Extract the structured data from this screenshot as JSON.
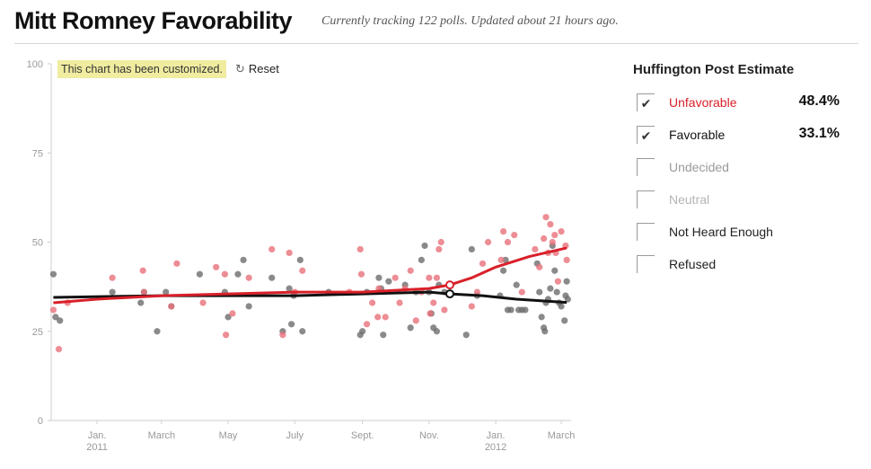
{
  "header": {
    "title": "Mitt Romney Favorability",
    "subtitle": "Currently tracking 122 polls. Updated about 21 hours ago."
  },
  "controls": {
    "customized_badge": "This chart has been customized.",
    "reset_label": "Reset",
    "reset_icon": "reset-icon"
  },
  "legend": {
    "title": "Huffington Post Estimate",
    "items": [
      {
        "label": "Unfavorable",
        "value": "48.4%",
        "checked": true,
        "color": "#d9202a"
      },
      {
        "label": "Favorable",
        "value": "33.1%",
        "checked": true,
        "color": "#111111"
      },
      {
        "label": "Undecided",
        "value": "",
        "checked": false,
        "color": "#9a9a9a"
      },
      {
        "label": "Neutral",
        "value": "",
        "checked": false,
        "color": "#b5b5b5"
      },
      {
        "label": "Not Heard Enough",
        "value": "",
        "checked": false,
        "color": "#222222"
      },
      {
        "label": "Refused",
        "value": "",
        "checked": false,
        "color": "#222222"
      }
    ]
  },
  "chart_data": {
    "type": "scatter",
    "title": "",
    "xlabel": "",
    "ylabel": "",
    "ylim": [
      0,
      100
    ],
    "yticks": [
      0,
      25,
      50,
      75,
      100
    ],
    "xlim": [
      "2010-11-20",
      "2012-03-10"
    ],
    "xticks": [
      {
        "date": "2011-01-01",
        "label": "Jan.",
        "sublabel": "2011"
      },
      {
        "date": "2011-03-01",
        "label": "March",
        "sublabel": ""
      },
      {
        "date": "2011-05-01",
        "label": "May",
        "sublabel": ""
      },
      {
        "date": "2011-07-01",
        "label": "July",
        "sublabel": ""
      },
      {
        "date": "2011-09-01",
        "label": "Sept.",
        "sublabel": ""
      },
      {
        "date": "2011-11-01",
        "label": "Nov.",
        "sublabel": ""
      },
      {
        "date": "2012-01-01",
        "label": "Jan.",
        "sublabel": "2012"
      },
      {
        "date": "2012-03-01",
        "label": "March",
        "sublabel": ""
      }
    ],
    "grid": false,
    "series": [
      {
        "name": "Unfavorable",
        "color": "#d9202a",
        "trend": [
          [
            "2010-11-22",
            33
          ],
          [
            "2011-01-01",
            34
          ],
          [
            "2011-03-01",
            35
          ],
          [
            "2011-05-01",
            35.5
          ],
          [
            "2011-07-01",
            36
          ],
          [
            "2011-09-01",
            36
          ],
          [
            "2011-11-01",
            37
          ],
          [
            "2011-11-20",
            38
          ],
          [
            "2011-12-10",
            40
          ],
          [
            "2012-01-01",
            43
          ],
          [
            "2012-02-01",
            46
          ],
          [
            "2012-03-06",
            48.4
          ]
        ],
        "marker": [
          "2011-11-20",
          38
        ],
        "points": [
          [
            "2010-11-22",
            31
          ],
          [
            "2010-11-27",
            20
          ],
          [
            "2010-12-05",
            33
          ],
          [
            "2011-01-15",
            40
          ],
          [
            "2011-02-12",
            42
          ],
          [
            "2011-02-13",
            36
          ],
          [
            "2011-03-10",
            32
          ],
          [
            "2011-03-15",
            44
          ],
          [
            "2011-04-08",
            33
          ],
          [
            "2011-04-20",
            43
          ],
          [
            "2011-04-28",
            41
          ],
          [
            "2011-04-29",
            24
          ],
          [
            "2011-05-05",
            30
          ],
          [
            "2011-05-20",
            40
          ],
          [
            "2011-06-10",
            48
          ],
          [
            "2011-06-26",
            47
          ],
          [
            "2011-06-20",
            24
          ],
          [
            "2011-07-08",
            42
          ],
          [
            "2011-07-01",
            36
          ],
          [
            "2011-08-20",
            36
          ],
          [
            "2011-08-30",
            48
          ],
          [
            "2011-08-31",
            41
          ],
          [
            "2011-09-05",
            27
          ],
          [
            "2011-09-10",
            33
          ],
          [
            "2011-09-15",
            29
          ],
          [
            "2011-09-16",
            37
          ],
          [
            "2011-09-22",
            29
          ],
          [
            "2011-10-01",
            40
          ],
          [
            "2011-10-05",
            33
          ],
          [
            "2011-10-10",
            37
          ],
          [
            "2011-10-15",
            42
          ],
          [
            "2011-10-20",
            28
          ],
          [
            "2011-10-25",
            36
          ],
          [
            "2011-11-01",
            40
          ],
          [
            "2011-11-02",
            30
          ],
          [
            "2011-11-05",
            33
          ],
          [
            "2011-11-08",
            40
          ],
          [
            "2011-11-10",
            48
          ],
          [
            "2011-11-12",
            50
          ],
          [
            "2011-11-15",
            31
          ],
          [
            "2011-11-20",
            38
          ],
          [
            "2011-12-10",
            32
          ],
          [
            "2011-12-15",
            36
          ],
          [
            "2011-12-20",
            44
          ],
          [
            "2011-12-25",
            50
          ],
          [
            "2012-01-06",
            45
          ],
          [
            "2012-01-08",
            53
          ],
          [
            "2012-01-12",
            50
          ],
          [
            "2012-01-18",
            52
          ],
          [
            "2012-01-25",
            36
          ],
          [
            "2012-02-06",
            48
          ],
          [
            "2012-02-10",
            43
          ],
          [
            "2012-02-14",
            51
          ],
          [
            "2012-02-16",
            57
          ],
          [
            "2012-02-18",
            47
          ],
          [
            "2012-02-20",
            55
          ],
          [
            "2012-02-22",
            50
          ],
          [
            "2012-02-24",
            52
          ],
          [
            "2012-02-25",
            47
          ],
          [
            "2012-02-27",
            39
          ],
          [
            "2012-03-01",
            53
          ],
          [
            "2012-03-05",
            49
          ],
          [
            "2012-03-06",
            45
          ]
        ]
      },
      {
        "name": "Favorable",
        "color": "#111111",
        "trend": [
          [
            "2010-11-22",
            34.5
          ],
          [
            "2011-03-01",
            35
          ],
          [
            "2011-07-01",
            35
          ],
          [
            "2011-09-01",
            35.5
          ],
          [
            "2011-11-01",
            36
          ],
          [
            "2011-11-20",
            35.5
          ],
          [
            "2011-12-20",
            35
          ],
          [
            "2012-01-20",
            34
          ],
          [
            "2012-03-06",
            33.1
          ]
        ],
        "marker": [
          "2011-11-20",
          35.5
        ],
        "points": [
          [
            "2010-11-22",
            41
          ],
          [
            "2010-11-24",
            29
          ],
          [
            "2010-11-28",
            28
          ],
          [
            "2011-01-15",
            36
          ],
          [
            "2011-02-10",
            33
          ],
          [
            "2011-02-13",
            36
          ],
          [
            "2011-02-25",
            25
          ],
          [
            "2011-03-05",
            36
          ],
          [
            "2011-03-10",
            32
          ],
          [
            "2011-04-05",
            41
          ],
          [
            "2011-04-28",
            36
          ],
          [
            "2011-05-01",
            29
          ],
          [
            "2011-05-10",
            41
          ],
          [
            "2011-05-15",
            45
          ],
          [
            "2011-05-20",
            32
          ],
          [
            "2011-06-10",
            40
          ],
          [
            "2011-06-20",
            25
          ],
          [
            "2011-06-26",
            37
          ],
          [
            "2011-06-28",
            27
          ],
          [
            "2011-06-30",
            35
          ],
          [
            "2011-07-06",
            45
          ],
          [
            "2011-07-08",
            25
          ],
          [
            "2011-08-01",
            36
          ],
          [
            "2011-08-30",
            24
          ],
          [
            "2011-09-01",
            25
          ],
          [
            "2011-09-05",
            36
          ],
          [
            "2011-09-16",
            40
          ],
          [
            "2011-09-18",
            37
          ],
          [
            "2011-09-20",
            24
          ],
          [
            "2011-09-25",
            39
          ],
          [
            "2011-10-10",
            38
          ],
          [
            "2011-10-15",
            26
          ],
          [
            "2011-10-20",
            36
          ],
          [
            "2011-10-25",
            45
          ],
          [
            "2011-10-28",
            49
          ],
          [
            "2011-11-01",
            36
          ],
          [
            "2011-11-03",
            30
          ],
          [
            "2011-11-05",
            26
          ],
          [
            "2011-11-08",
            25
          ],
          [
            "2011-11-10",
            38
          ],
          [
            "2011-11-15",
            36
          ],
          [
            "2011-12-05",
            24
          ],
          [
            "2011-12-10",
            48
          ],
          [
            "2011-12-15",
            35
          ],
          [
            "2012-01-05",
            35
          ],
          [
            "2012-01-08",
            42
          ],
          [
            "2012-01-10",
            45
          ],
          [
            "2012-01-12",
            31
          ],
          [
            "2012-01-15",
            31
          ],
          [
            "2012-01-20",
            38
          ],
          [
            "2012-01-22",
            31
          ],
          [
            "2012-01-25",
            31
          ],
          [
            "2012-01-28",
            31
          ],
          [
            "2012-02-08",
            44
          ],
          [
            "2012-02-10",
            36
          ],
          [
            "2012-02-12",
            29
          ],
          [
            "2012-02-14",
            26
          ],
          [
            "2012-02-15",
            25
          ],
          [
            "2012-02-16",
            33
          ],
          [
            "2012-02-18",
            34
          ],
          [
            "2012-02-20",
            37
          ],
          [
            "2012-02-22",
            49
          ],
          [
            "2012-02-24",
            42
          ],
          [
            "2012-02-26",
            36
          ],
          [
            "2012-02-28",
            33
          ],
          [
            "2012-03-01",
            32
          ],
          [
            "2012-03-04",
            28
          ],
          [
            "2012-03-05",
            35
          ],
          [
            "2012-03-06",
            39
          ],
          [
            "2012-03-07",
            34
          ]
        ]
      }
    ]
  }
}
